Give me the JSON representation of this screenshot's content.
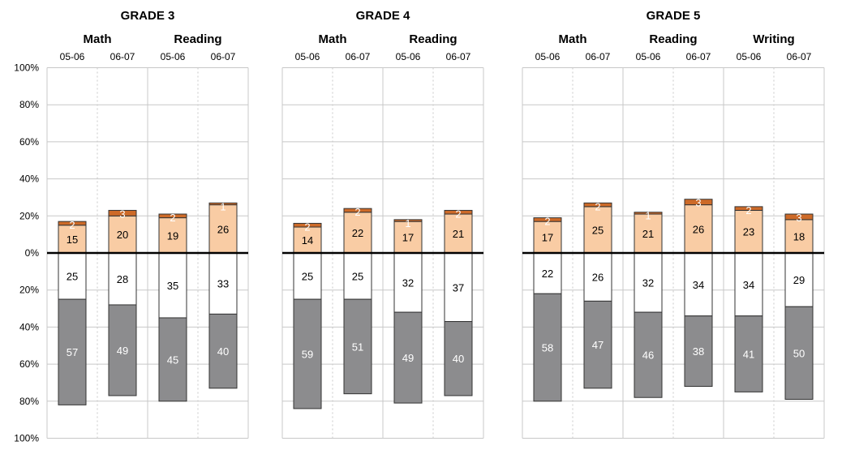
{
  "chart_data": {
    "type": "bar",
    "stacked": true,
    "diverging": true,
    "y_axis": {
      "ticks": [
        "100%",
        "80%",
        "60%",
        "40%",
        "20%",
        "0%",
        "20%",
        "40%",
        "60%",
        "80%",
        "100%"
      ],
      "range_above": [
        0,
        100
      ],
      "range_below": [
        0,
        100
      ]
    },
    "grid": true,
    "colors": {
      "top": "#cd6a28",
      "upper": "#f9cca4",
      "white": "#ffffff",
      "gray": "#8c8c8e",
      "axis": "#000000",
      "grid": "#c8c8c8"
    },
    "panels": [
      {
        "title": "GRADE 3",
        "subjects": [
          {
            "name": "Math",
            "bars": [
              {
                "year": "05-06",
                "top": 2,
                "upper": 15,
                "white": 25,
                "gray": 57
              },
              {
                "year": "06-07",
                "top": 3,
                "upper": 20,
                "white": 28,
                "gray": 49
              }
            ]
          },
          {
            "name": "Reading",
            "bars": [
              {
                "year": "05-06",
                "top": 2,
                "upper": 19,
                "white": 35,
                "gray": 45
              },
              {
                "year": "06-07",
                "top": 1,
                "upper": 26,
                "white": 33,
                "gray": 40
              }
            ]
          }
        ]
      },
      {
        "title": "GRADE 4",
        "subjects": [
          {
            "name": "Math",
            "bars": [
              {
                "year": "05-06",
                "top": 2,
                "upper": 14,
                "white": 25,
                "gray": 59
              },
              {
                "year": "06-07",
                "top": 2,
                "upper": 22,
                "white": 25,
                "gray": 51
              }
            ]
          },
          {
            "name": "Reading",
            "bars": [
              {
                "year": "05-06",
                "top": 1,
                "upper": 17,
                "white": 32,
                "gray": 49
              },
              {
                "year": "06-07",
                "top": 2,
                "upper": 21,
                "white": 37,
                "gray": 40
              }
            ]
          }
        ]
      },
      {
        "title": "GRADE 5",
        "subjects": [
          {
            "name": "Math",
            "bars": [
              {
                "year": "05-06",
                "top": 2,
                "upper": 17,
                "white": 22,
                "gray": 58
              },
              {
                "year": "06-07",
                "top": 2,
                "upper": 25,
                "white": 26,
                "gray": 47
              }
            ]
          },
          {
            "name": "Reading",
            "bars": [
              {
                "year": "05-06",
                "top": 1,
                "upper": 21,
                "white": 32,
                "gray": 46
              },
              {
                "year": "06-07",
                "top": 3,
                "upper": 26,
                "white": 34,
                "gray": 38
              }
            ]
          },
          {
            "name": "Writing",
            "bars": [
              {
                "year": "05-06",
                "top": 2,
                "upper": 23,
                "white": 34,
                "gray": 41
              },
              {
                "year": "06-07",
                "top": 3,
                "upper": 18,
                "white": 29,
                "gray": 50
              }
            ]
          }
        ]
      }
    ]
  }
}
